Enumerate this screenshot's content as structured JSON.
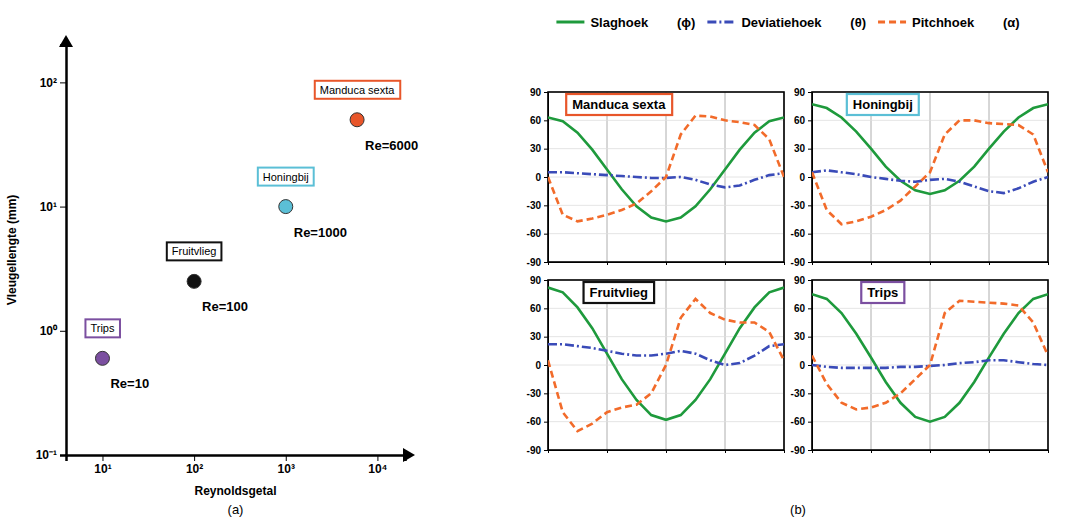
{
  "chart_data": [
    {
      "type": "scatter",
      "caption": "(a)",
      "xlabel": "Reynoldsgetal",
      "ylabel": "Vleugellengte (mm)",
      "log": true,
      "xlim": [
        4,
        20000
      ],
      "ylim": [
        0.1,
        200
      ],
      "xticks": [
        {
          "value": 10,
          "label": "10¹"
        },
        {
          "value": 100,
          "label": "10²"
        },
        {
          "value": 1000,
          "label": "10³"
        },
        {
          "value": 10000,
          "label": "10⁴"
        }
      ],
      "yticks": [
        {
          "value": 0.1,
          "label": "10⁻¹"
        },
        {
          "value": 1,
          "label": "10⁰"
        },
        {
          "value": 10,
          "label": "10¹"
        },
        {
          "value": 100,
          "label": "10²"
        }
      ],
      "series": [
        {
          "name": "Trips",
          "color": "#7b4fa0",
          "marker": "circle",
          "x": [
            10
          ],
          "values": [
            0.6
          ],
          "annotation": "Re=10"
        },
        {
          "name": "Fruitvlieg",
          "color": "#111111",
          "marker": "circle",
          "x": [
            100
          ],
          "values": [
            2.5
          ],
          "annotation": "Re=100"
        },
        {
          "name": "Honingbij",
          "color": "#5bbfd6",
          "marker": "circle",
          "x": [
            1000
          ],
          "values": [
            10
          ],
          "annotation": "Re=1000"
        },
        {
          "name": "Manduca sexta",
          "color": "#e8562a",
          "marker": "circle",
          "x": [
            6000
          ],
          "values": [
            50
          ],
          "annotation": "Re=6000"
        }
      ]
    },
    {
      "type": "line",
      "caption": "(b)",
      "title": "Manduca sexta",
      "color": "#e8562a",
      "legend": "top",
      "grid": true,
      "tick_labels": "y",
      "x": [
        0,
        0.0625,
        0.125,
        0.1875,
        0.25,
        0.3125,
        0.375,
        0.4375,
        0.5,
        0.5625,
        0.625,
        0.6875,
        0.75,
        0.8125,
        0.875,
        0.9375,
        1
      ],
      "xlim": [
        0,
        1
      ],
      "xticks": [
        0,
        0.25,
        0.5,
        0.75,
        1
      ],
      "ylim": [
        -90,
        90
      ],
      "yticks": [
        -90,
        -60,
        -30,
        0,
        30,
        60,
        90
      ],
      "series": [
        {
          "name": "Slaghoek",
          "symbol": "(ϕ)",
          "color": "#1e9a3c",
          "line_style": "solid",
          "values": [
            63,
            59,
            47,
            29,
            8,
            -13,
            -31,
            -43,
            -47,
            -43,
            -31,
            -13,
            8,
            29,
            47,
            59,
            63
          ]
        },
        {
          "name": "Deviatiehoek",
          "symbol": "(θ)",
          "color": "#3a4bb8",
          "line_style": "dashdot",
          "values": [
            5,
            5,
            4,
            3,
            2,
            1,
            0,
            -1,
            -1,
            0,
            -3,
            -8,
            -11,
            -9,
            -3,
            2,
            4
          ]
        },
        {
          "name": "Pitchhoek",
          "symbol": "(α)",
          "color": "#f26b2a",
          "line_style": "dashed",
          "values": [
            0,
            -40,
            -47,
            -44,
            -40,
            -35,
            -28,
            -15,
            0,
            45,
            65,
            64,
            60,
            58,
            55,
            40,
            0
          ]
        }
      ]
    },
    {
      "type": "line",
      "title": "Honingbij",
      "color": "#5bbfd6",
      "grid": true,
      "tick_labels": "y",
      "x": [
        0,
        0.0625,
        0.125,
        0.1875,
        0.25,
        0.3125,
        0.375,
        0.4375,
        0.5,
        0.5625,
        0.625,
        0.6875,
        0.75,
        0.8125,
        0.875,
        0.9375,
        1
      ],
      "xlim": [
        0,
        1
      ],
      "xticks": [
        0,
        0.25,
        0.5,
        0.75,
        1
      ],
      "ylim": [
        -90,
        90
      ],
      "yticks": [
        -90,
        -60,
        -30,
        0,
        30,
        60,
        90
      ],
      "series": [
        {
          "color": "#1e9a3c",
          "line_style": "solid",
          "values": [
            77,
            73,
            63,
            48,
            30,
            11,
            -4,
            -14,
            -18,
            -14,
            -4,
            11,
            30,
            48,
            63,
            73,
            77
          ]
        },
        {
          "color": "#3a4bb8",
          "line_style": "dashdot",
          "values": [
            5,
            7,
            5,
            3,
            0,
            -2,
            -4,
            -5,
            -3,
            -2,
            -5,
            -10,
            -15,
            -17,
            -12,
            -5,
            0
          ]
        },
        {
          "color": "#f26b2a",
          "line_style": "dashed",
          "values": [
            5,
            -35,
            -50,
            -47,
            -42,
            -35,
            -25,
            -10,
            5,
            45,
            60,
            60,
            57,
            56,
            55,
            45,
            5
          ]
        }
      ]
    },
    {
      "type": "line",
      "title": "Fruitvlieg",
      "color": "#111111",
      "grid": true,
      "tick_labels": "y",
      "x": [
        0,
        0.0625,
        0.125,
        0.1875,
        0.25,
        0.3125,
        0.375,
        0.4375,
        0.5,
        0.5625,
        0.625,
        0.6875,
        0.75,
        0.8125,
        0.875,
        0.9375,
        1
      ],
      "xlim": [
        0,
        1
      ],
      "xticks": [
        0,
        0.25,
        0.5,
        0.75,
        1
      ],
      "ylim": [
        -90,
        90
      ],
      "yticks": [
        -90,
        -60,
        -30,
        0,
        30,
        60,
        90
      ],
      "series": [
        {
          "color": "#1e9a3c",
          "line_style": "solid",
          "values": [
            82,
            77,
            61,
            39,
            12,
            -15,
            -37,
            -53,
            -58,
            -53,
            -37,
            -15,
            12,
            39,
            61,
            77,
            82
          ]
        },
        {
          "color": "#3a4bb8",
          "line_style": "dashdot",
          "values": [
            22,
            22,
            20,
            18,
            15,
            12,
            10,
            10,
            12,
            15,
            12,
            5,
            0,
            2,
            10,
            20,
            22
          ]
        },
        {
          "color": "#f26b2a",
          "line_style": "dashed",
          "values": [
            5,
            -50,
            -70,
            -62,
            -50,
            -45,
            -42,
            -30,
            0,
            50,
            70,
            55,
            48,
            45,
            45,
            35,
            5
          ]
        }
      ]
    },
    {
      "type": "line",
      "title": "Trips",
      "color": "#7b4fa0",
      "grid": true,
      "tick_labels": "y",
      "x": [
        0,
        0.0625,
        0.125,
        0.1875,
        0.25,
        0.3125,
        0.375,
        0.4375,
        0.5,
        0.5625,
        0.625,
        0.6875,
        0.75,
        0.8125,
        0.875,
        0.9375,
        1
      ],
      "xlim": [
        0,
        1
      ],
      "xticks": [
        0,
        0.25,
        0.5,
        0.75,
        1
      ],
      "ylim": [
        -90,
        90
      ],
      "yticks": [
        -90,
        -60,
        -30,
        0,
        30,
        60,
        90
      ],
      "series": [
        {
          "color": "#1e9a3c",
          "line_style": "solid",
          "values": [
            75,
            70,
            55,
            33,
            8,
            -18,
            -40,
            -55,
            -60,
            -55,
            -40,
            -18,
            8,
            33,
            55,
            70,
            75
          ]
        },
        {
          "color": "#3a4bb8",
          "line_style": "dashdot",
          "values": [
            0,
            -2,
            -3,
            -3,
            -3,
            -3,
            -2,
            -2,
            -1,
            0,
            2,
            3,
            5,
            5,
            3,
            1,
            0
          ]
        },
        {
          "color": "#f26b2a",
          "line_style": "dashed",
          "values": [
            10,
            -20,
            -40,
            -47,
            -45,
            -40,
            -30,
            -15,
            0,
            55,
            68,
            67,
            66,
            65,
            63,
            45,
            10
          ]
        }
      ]
    }
  ]
}
